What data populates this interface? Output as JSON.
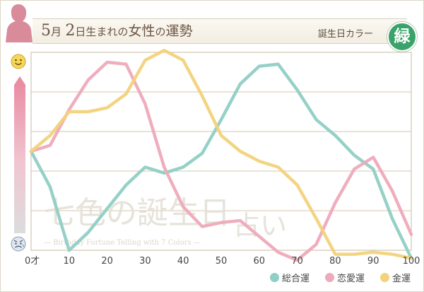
{
  "header": {
    "title_month": "5",
    "title_month_unit": "月",
    "title_day": "2",
    "title_rest1": "日生まれの",
    "title_woman": "女性",
    "title_no": "の",
    "title_fortune": "運勢",
    "birthday_color_label": "誕生日カラー",
    "birthday_color": "緑",
    "birthday_color_hex": "#3aa36b"
  },
  "watermark": {
    "main": "七色の誕生日",
    "sub": "占い",
    "caption": "— Birthday Fortune Telling with 7 Colors —"
  },
  "icons": {
    "top": "happy-face-icon",
    "bottom": "worried-face-icon"
  },
  "chart_data": {
    "type": "line",
    "x": [
      0,
      5,
      10,
      15,
      20,
      25,
      30,
      35,
      40,
      45,
      50,
      55,
      60,
      65,
      70,
      75,
      80,
      85,
      90,
      95,
      100
    ],
    "x_tick_labels": [
      "0才",
      "10",
      "20",
      "30",
      "40",
      "50",
      "60",
      "70",
      "80",
      "90",
      "100"
    ],
    "x_ticks": [
      0,
      10,
      20,
      30,
      40,
      50,
      60,
      70,
      80,
      90,
      100
    ],
    "xlim": [
      0,
      100
    ],
    "ylim": [
      0,
      100
    ],
    "grid": true,
    "legend_position": "bottom-right",
    "series": [
      {
        "name": "総合運",
        "color": "#8fcfc4",
        "values": [
          50,
          32,
          0,
          9,
          21,
          33,
          42,
          39,
          42,
          49,
          66,
          84,
          93,
          94,
          81,
          66,
          58,
          48,
          41,
          16,
          -4
        ]
      },
      {
        "name": "恋愛運",
        "color": "#eeaabb",
        "values": [
          50,
          53,
          71,
          86,
          95,
          94,
          74,
          42,
          22,
          12,
          14,
          15,
          7,
          -1,
          -5,
          3,
          24,
          41,
          47,
          30,
          8
        ]
      },
      {
        "name": "金運",
        "color": "#f2d27a",
        "values": [
          50,
          58,
          70,
          70,
          72,
          79,
          96,
          101,
          96,
          78,
          58,
          50,
          45,
          42,
          33,
          16,
          -2,
          -2,
          -1,
          -2,
          -4
        ]
      }
    ]
  }
}
